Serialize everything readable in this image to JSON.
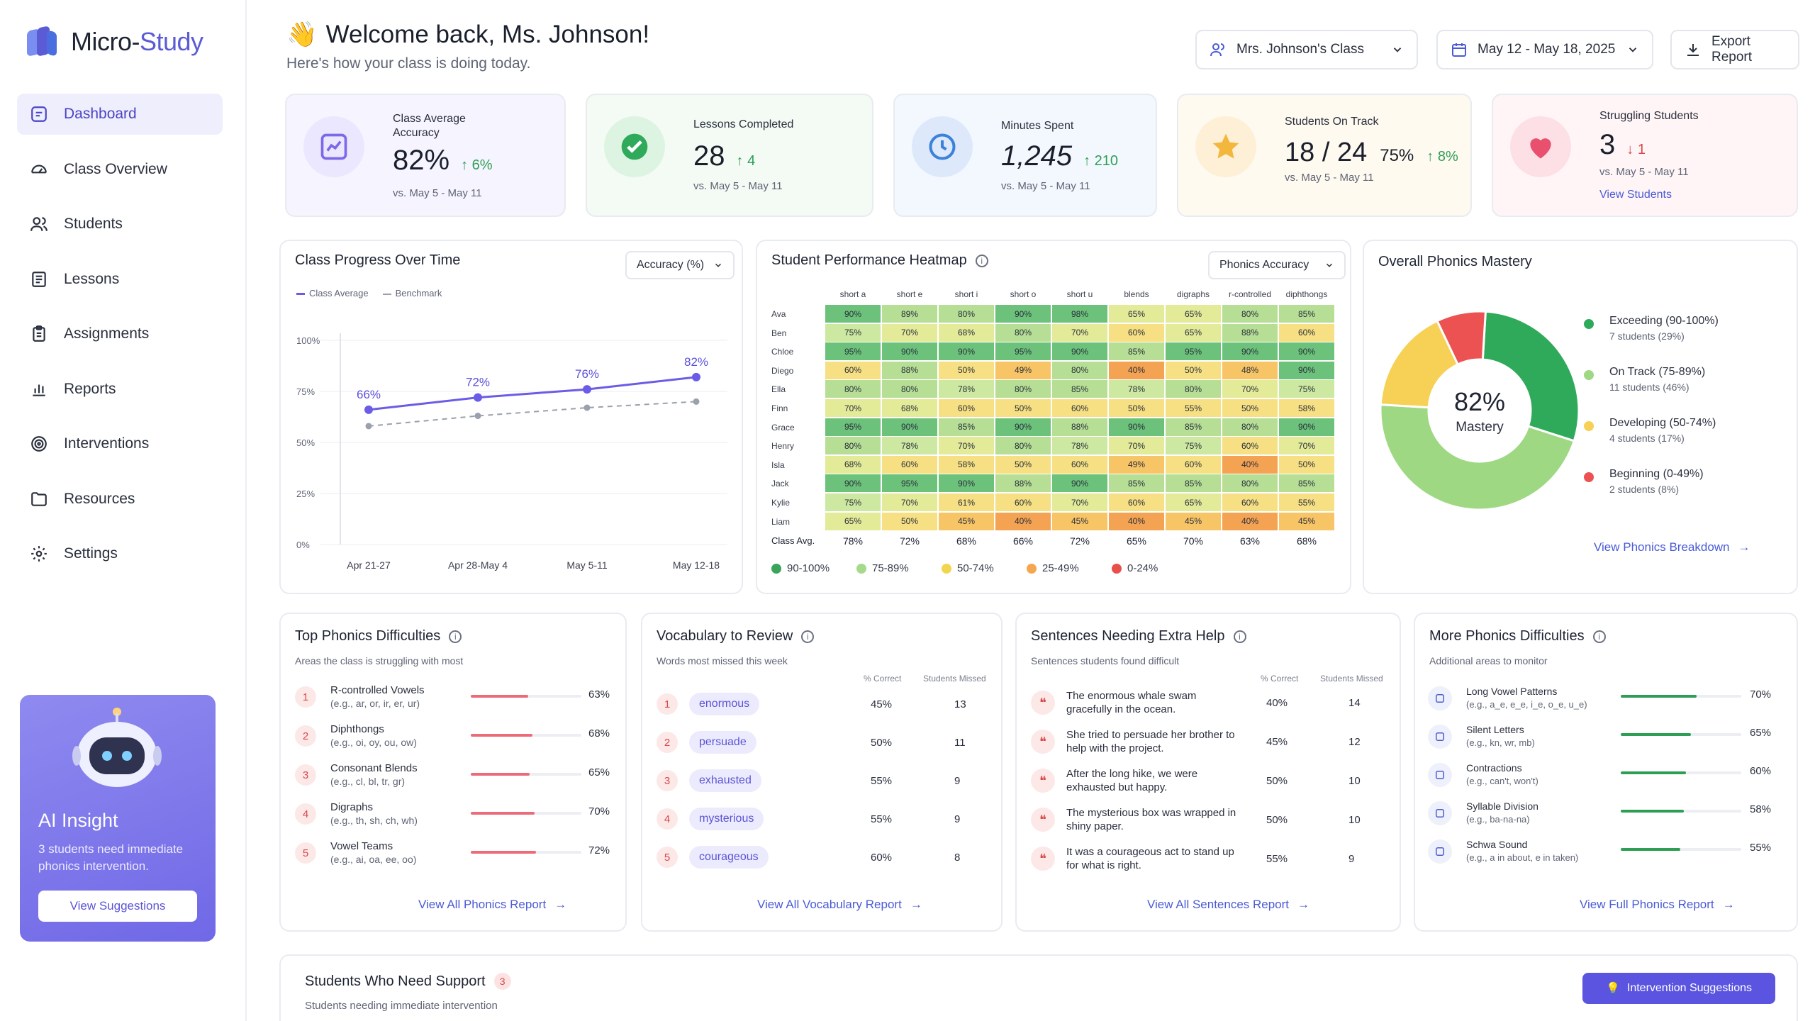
{
  "app": {
    "name_part1": "Micro-",
    "name_part2": "Study"
  },
  "sidebar": {
    "items": [
      {
        "label": "Dashboard",
        "icon": "dashboard-icon"
      },
      {
        "label": "Class Overview",
        "icon": "speedometer-icon"
      },
      {
        "label": "Students",
        "icon": "users-icon"
      },
      {
        "label": "Lessons",
        "icon": "book-icon"
      },
      {
        "label": "Assignments",
        "icon": "clipboard-icon"
      },
      {
        "label": "Reports",
        "icon": "bar-chart-icon"
      },
      {
        "label": "Interventions",
        "icon": "target-icon"
      },
      {
        "label": "Resources",
        "icon": "folder-icon"
      },
      {
        "label": "Settings",
        "icon": "gear-icon"
      }
    ],
    "insight": {
      "title": "AI Insight",
      "text": "3 students need immediate phonics intervention.",
      "button": "View Suggestions"
    }
  },
  "header": {
    "emoji": "👋",
    "title": "Welcome back, Ms. Johnson!",
    "subtitle": "Here's how your class is doing today.",
    "class_select": "Mrs. Johnson's Class",
    "date_range": "May 12 - May 18, 2025",
    "export": "Export Report"
  },
  "stats": [
    {
      "label": "Class Average Accuracy",
      "value": "82%",
      "delta": "6%",
      "dir": "up",
      "sub": "vs. May 5 - May 11",
      "color": "#8b7cf0",
      "bg": "#f6f4ff"
    },
    {
      "label": "Lessons Completed",
      "value": "28",
      "delta": "4",
      "dir": "up",
      "sub": "vs. May 5 - May 11",
      "color": "#2faa5a",
      "bg": "#f3fbf4"
    },
    {
      "label": "Minutes Spent",
      "value": "1,245",
      "delta": "210",
      "dir": "up",
      "sub": "vs. May 5 - May 11",
      "color": "#4a8fe0",
      "bg": "#f3f8ff"
    },
    {
      "label": "Students On Track",
      "value": "18 / 24",
      "value2": "75%",
      "delta": "8%",
      "dir": "up",
      "sub": "vs. May 5 - May 11",
      "color": "#f2b43c",
      "bg": "#fffaf0"
    },
    {
      "label": "Struggling Students",
      "value": "3",
      "delta": "1",
      "dir": "down",
      "sub": "vs. May 5 - May 11",
      "link": "View Students",
      "color": "#e8506e",
      "bg": "#fff5f7"
    }
  ],
  "progress": {
    "title": "Class Progress Over Time",
    "select": "Accuracy (%)",
    "legend": [
      "Class Average",
      "Benchmark"
    ]
  },
  "chart_data": {
    "type": "line",
    "title": "Class Progress Over Time",
    "categories": [
      "Apr 21-27",
      "Apr 28-May 4",
      "May 5-11",
      "May 12-18"
    ],
    "series": [
      {
        "name": "Class Average",
        "values": [
          66,
          72,
          76,
          82
        ],
        "color": "#6b5ce7"
      },
      {
        "name": "Benchmark",
        "values": [
          58,
          63,
          67,
          70
        ],
        "color": "#9aa0ad"
      }
    ],
    "ylim": [
      0,
      100
    ],
    "yticks": [
      "0%",
      "25%",
      "50%",
      "75%",
      "100%"
    ],
    "point_labels": [
      "66%",
      "72%",
      "76%",
      "82%"
    ]
  },
  "heatmap": {
    "title": "Student Performance Heatmap",
    "select": "Phonics Accuracy",
    "columns": [
      "short a",
      "short e",
      "short i",
      "short o",
      "short u",
      "blends",
      "digraphs",
      "r-controlled",
      "diphthongs"
    ],
    "rows": [
      {
        "name": "Ava",
        "values": [
          90,
          89,
          80,
          90,
          98,
          65,
          65,
          80,
          85
        ]
      },
      {
        "name": "Ben",
        "values": [
          75,
          70,
          68,
          80,
          70,
          60,
          65,
          88,
          60
        ]
      },
      {
        "name": "Chloe",
        "values": [
          95,
          90,
          90,
          95,
          90,
          85,
          95,
          90,
          90
        ]
      },
      {
        "name": "Diego",
        "values": [
          60,
          88,
          50,
          49,
          80,
          40,
          50,
          48,
          90
        ]
      },
      {
        "name": "Ella",
        "values": [
          80,
          80,
          78,
          80,
          85,
          78,
          80,
          70,
          75
        ]
      },
      {
        "name": "Finn",
        "values": [
          70,
          68,
          60,
          50,
          60,
          50,
          55,
          50,
          58
        ]
      },
      {
        "name": "Grace",
        "values": [
          95,
          90,
          85,
          90,
          88,
          90,
          85,
          80,
          90
        ]
      },
      {
        "name": "Henry",
        "values": [
          80,
          78,
          70,
          80,
          78,
          70,
          75,
          60,
          70
        ]
      },
      {
        "name": "Isla",
        "values": [
          68,
          60,
          58,
          50,
          60,
          49,
          60,
          40,
          50
        ]
      },
      {
        "name": "Jack",
        "values": [
          90,
          95,
          90,
          88,
          90,
          85,
          85,
          80,
          85
        ]
      },
      {
        "name": "Kylie",
        "values": [
          75,
          70,
          61,
          60,
          70,
          60,
          65,
          60,
          55
        ]
      },
      {
        "name": "Liam",
        "values": [
          65,
          50,
          45,
          40,
          45,
          40,
          45,
          40,
          45
        ]
      }
    ],
    "avg_label": "Class Avg.",
    "avg": [
      "78%",
      "72%",
      "68%",
      "66%",
      "72%",
      "65%",
      "70%",
      "63%",
      "68%"
    ],
    "legend": [
      {
        "label": "90-100%",
        "color": "#3aa55a"
      },
      {
        "label": "75-89%",
        "color": "#a6d98a"
      },
      {
        "label": "50-74%",
        "color": "#f2d54e"
      },
      {
        "label": "25-49%",
        "color": "#f4a74e"
      },
      {
        "label": "0-24%",
        "color": "#e8504a"
      }
    ]
  },
  "mastery": {
    "title": "Overall Phonics Mastery",
    "center_value": "82%",
    "center_label": "Mastery",
    "segments": [
      {
        "label": "Exceeding (90-100%)",
        "sub": "7 students (29%)",
        "value": 29,
        "color": "#2faa5a"
      },
      {
        "label": "On Track (75-89%)",
        "sub": "11 students (46%)",
        "value": 46,
        "color": "#9fd883"
      },
      {
        "label": "Developing (50-74%)",
        "sub": "4 students (17%)",
        "value": 17,
        "color": "#f6d156"
      },
      {
        "label": "Beginning (0-49%)",
        "sub": "2 students (8%)",
        "value": 8,
        "color": "#ec5252"
      }
    ],
    "link": "View Phonics Breakdown"
  },
  "phonics": {
    "title": "Top Phonics Difficulties",
    "subtitle": "Areas the class is struggling with most",
    "items": [
      {
        "name": "R-controlled Vowels",
        "ex": "(e.g., ar, or, ir, er, ur)",
        "pct": "63%",
        "val": 63
      },
      {
        "name": "Diphthongs",
        "ex": "(e.g., oi, oy, ou, ow)",
        "pct": "68%",
        "val": 68
      },
      {
        "name": "Consonant Blends",
        "ex": "(e.g., cl, bl, tr, gr)",
        "pct": "65%",
        "val": 65
      },
      {
        "name": "Digraphs",
        "ex": "(e.g., th, sh, ch, wh)",
        "pct": "70%",
        "val": 70
      },
      {
        "name": "Vowel Teams",
        "ex": "(e.g., ai, oa, ee, oo)",
        "pct": "72%",
        "val": 72
      }
    ],
    "link": "View All Phonics Report"
  },
  "vocab": {
    "title": "Vocabulary to Review",
    "subtitle": "Words most missed this week",
    "col1": "% Correct",
    "col2": "Students Missed",
    "items": [
      {
        "word": "enormous",
        "pct": "45%",
        "missed": "13"
      },
      {
        "word": "persuade",
        "pct": "50%",
        "missed": "11"
      },
      {
        "word": "exhausted",
        "pct": "55%",
        "missed": "9"
      },
      {
        "word": "mysterious",
        "pct": "55%",
        "missed": "9"
      },
      {
        "word": "courageous",
        "pct": "60%",
        "missed": "8"
      }
    ],
    "link": "View All Vocabulary Report"
  },
  "sentences": {
    "title": "Sentences Needing Extra Help",
    "subtitle": "Sentences students found difficult",
    "col1": "% Correct",
    "col2": "Students Missed",
    "items": [
      {
        "text": "The enormous whale swam gracefully in the ocean.",
        "pct": "40%",
        "missed": "14"
      },
      {
        "text": "She tried to persuade her brother to help with the project.",
        "pct": "45%",
        "missed": "12"
      },
      {
        "text": "After the long hike, we were exhausted but happy.",
        "pct": "50%",
        "missed": "10"
      },
      {
        "text": "The mysterious box was wrapped in shiny paper.",
        "pct": "50%",
        "missed": "10"
      },
      {
        "text": "It was a courageous act to stand up for what is right.",
        "pct": "55%",
        "missed": "9"
      }
    ],
    "link": "View All Sentences Report"
  },
  "more": {
    "title": "More Phonics Difficulties",
    "subtitle": "Additional areas to monitor",
    "items": [
      {
        "name": "Long Vowel Patterns",
        "ex": "(e.g., a_e, e_e, i_e, o_e, u_e)",
        "pct": "70%",
        "val": 70
      },
      {
        "name": "Silent Letters",
        "ex": "(e.g., kn, wr, mb)",
        "pct": "65%",
        "val": 65
      },
      {
        "name": "Contractions",
        "ex": "(e.g., can't, won't)",
        "pct": "60%",
        "val": 60
      },
      {
        "name": "Syllable Division",
        "ex": "(e.g., ba-na-na)",
        "pct": "58%",
        "val": 58
      },
      {
        "name": "Schwa Sound",
        "ex": "(e.g., a in about, e in taken)",
        "pct": "55%",
        "val": 55
      }
    ],
    "link": "View Full Phonics Report"
  },
  "support": {
    "title": "Students Who Need Support",
    "count": "3",
    "subtitle": "Students needing immediate intervention",
    "button": "Intervention Suggestions"
  }
}
